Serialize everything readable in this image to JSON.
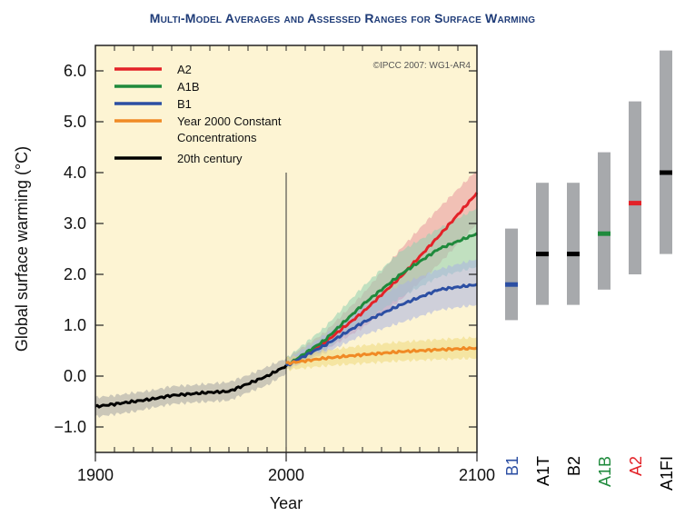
{
  "chart_data": {
    "type": "line",
    "title": "Multi-Model Averages and Assessed Ranges for Surface Warming",
    "credit": "©IPCC 2007: WG1-AR4",
    "xlabel": "Year",
    "ylabel": "Global surface warming (°C)",
    "xlim": [
      1900,
      2100
    ],
    "ylim": [
      -1.5,
      6.5
    ],
    "x_ticks": [
      1900,
      2000,
      2100
    ],
    "y_ticks": [
      6.0,
      5.0,
      4.0,
      3.0,
      2.0,
      1.0,
      0.0,
      -1.0
    ],
    "y_tick_labels": [
      "6.0",
      "5.0",
      "4.0",
      "3.0",
      "2.0",
      "1.0",
      "0.0",
      "−1.0"
    ],
    "x_tick_labels": [
      "1900",
      "2000",
      "2100"
    ],
    "divider_year": 2000,
    "series": [
      {
        "name": "A2",
        "color": "#e32228",
        "band_color": "#e8969c",
        "x": [
          2000,
          2020,
          2040,
          2060,
          2080,
          2100
        ],
        "values": [
          0.2,
          0.65,
          1.25,
          1.95,
          2.75,
          3.6
        ],
        "lower": [
          0.15,
          0.5,
          0.95,
          1.5,
          2.2,
          3.0
        ],
        "upper": [
          0.35,
          0.85,
          1.6,
          2.5,
          3.3,
          4.05
        ]
      },
      {
        "name": "A1B",
        "color": "#1f8a3c",
        "band_color": "#8fd0b0",
        "x": [
          2000,
          2020,
          2040,
          2060,
          2080,
          2100
        ],
        "values": [
          0.2,
          0.7,
          1.4,
          2.0,
          2.5,
          2.8
        ],
        "lower": [
          0.15,
          0.5,
          1.05,
          1.55,
          1.95,
          2.15
        ],
        "upper": [
          0.35,
          0.95,
          1.75,
          2.45,
          2.9,
          3.3
        ]
      },
      {
        "name": "B1",
        "color": "#2c4fa3",
        "band_color": "#a9b2e0",
        "x": [
          2000,
          2020,
          2040,
          2060,
          2080,
          2100
        ],
        "values": [
          0.2,
          0.6,
          1.05,
          1.4,
          1.7,
          1.8
        ],
        "lower": [
          0.12,
          0.45,
          0.8,
          1.05,
          1.3,
          1.4
        ],
        "upper": [
          0.3,
          0.8,
          1.35,
          1.8,
          2.1,
          2.3
        ]
      },
      {
        "name": "Year 2000 Constant Concentrations",
        "legend_lines": [
          "Year 2000 Constant",
          "Concentrations"
        ],
        "color": "#f08a25",
        "band_color": "#efd97a",
        "x": [
          2000,
          2020,
          2040,
          2060,
          2080,
          2100
        ],
        "values": [
          0.25,
          0.35,
          0.42,
          0.48,
          0.52,
          0.55
        ],
        "lower": [
          0.12,
          0.2,
          0.25,
          0.3,
          0.33,
          0.35
        ],
        "upper": [
          0.35,
          0.5,
          0.6,
          0.67,
          0.72,
          0.76
        ]
      },
      {
        "name": "20th century",
        "color": "#000000",
        "band_color": "#a3a3a3",
        "x": [
          1900,
          1910,
          1920,
          1930,
          1940,
          1950,
          1960,
          1970,
          1980,
          1990,
          2000
        ],
        "values": [
          -0.6,
          -0.55,
          -0.5,
          -0.45,
          -0.38,
          -0.35,
          -0.32,
          -0.3,
          -0.15,
          0.0,
          0.2
        ],
        "lower": [
          -0.8,
          -0.75,
          -0.7,
          -0.62,
          -0.55,
          -0.52,
          -0.5,
          -0.48,
          -0.32,
          -0.18,
          0.05
        ],
        "upper": [
          -0.42,
          -0.38,
          -0.33,
          -0.28,
          -0.2,
          -0.18,
          -0.15,
          -0.12,
          0.02,
          0.18,
          0.35
        ]
      }
    ],
    "assessed_ranges": [
      {
        "scenario": "B1",
        "low": 1.1,
        "high": 2.9,
        "best": 1.8,
        "color": "#2c4fa3"
      },
      {
        "scenario": "A1T",
        "low": 1.4,
        "high": 3.8,
        "best": 2.4,
        "color": "#000000"
      },
      {
        "scenario": "B2",
        "low": 1.4,
        "high": 3.8,
        "best": 2.4,
        "color": "#000000"
      },
      {
        "scenario": "A1B",
        "low": 1.7,
        "high": 4.4,
        "best": 2.8,
        "color": "#1f8a3c"
      },
      {
        "scenario": "A2",
        "low": 2.0,
        "high": 5.4,
        "best": 3.4,
        "color": "#e32228"
      },
      {
        "scenario": "A1FI",
        "low": 2.4,
        "high": 6.4,
        "best": 4.0,
        "color": "#000000"
      }
    ]
  }
}
